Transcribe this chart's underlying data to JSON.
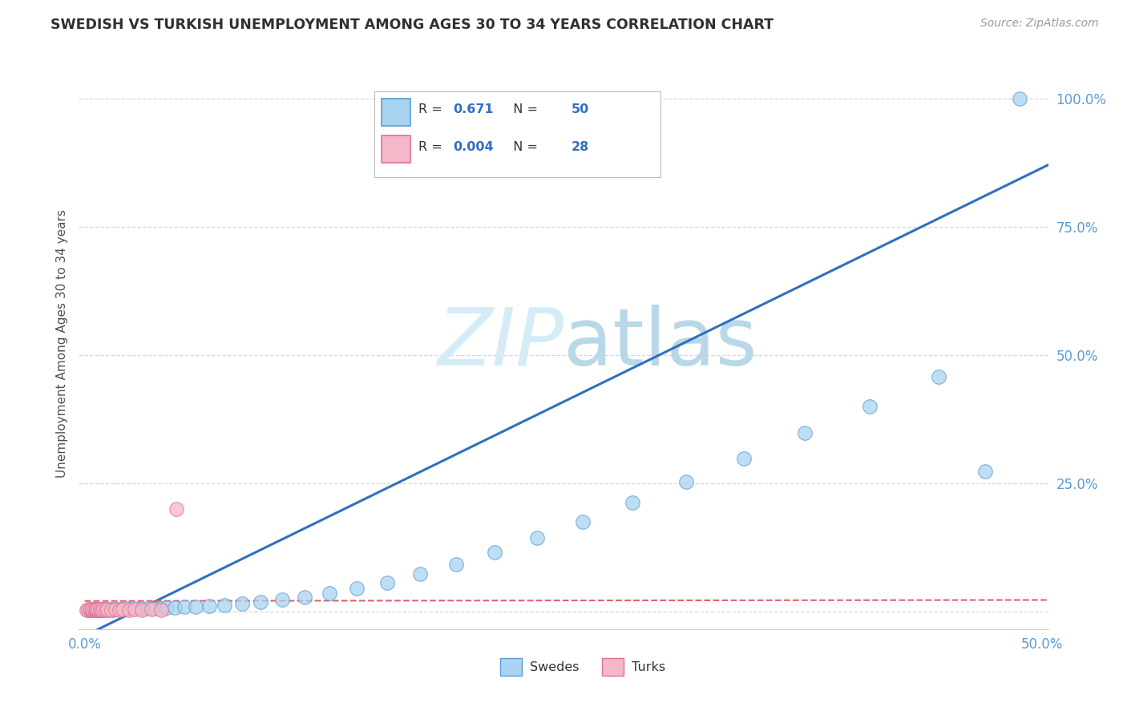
{
  "title": "SWEDISH VS TURKISH UNEMPLOYMENT AMONG AGES 30 TO 34 YEARS CORRELATION CHART",
  "source": "Source: ZipAtlas.com",
  "ylabel_label": "Unemployment Among Ages 30 to 34 years",
  "xlim": [
    -0.003,
    0.503
  ],
  "ylim": [
    -0.035,
    1.08
  ],
  "yticks": [
    0.0,
    0.25,
    0.5,
    0.75,
    1.0
  ],
  "ytick_labels": [
    "",
    "25.0%",
    "50.0%",
    "75.0%",
    "100.0%"
  ],
  "xticks": [
    0.0,
    0.5
  ],
  "xtick_labels": [
    "0.0%",
    "50.0%"
  ],
  "swedes_color": "#a8d4f0",
  "swedes_edge": "#5b9bd5",
  "turks_color": "#f4b8c8",
  "turks_edge": "#e07090",
  "blue_line_color": "#3070c0",
  "pink_line_color": "#e06070",
  "watermark_color": "#d5ecf8",
  "tick_color": "#5b9bd5",
  "grid_color": "#d0d8e0",
  "title_color": "#303030",
  "ylabel_color": "#505050",
  "swedes_x": [
    0.002,
    0.003,
    0.004,
    0.005,
    0.006,
    0.007,
    0.008,
    0.009,
    0.01,
    0.011,
    0.012,
    0.013,
    0.014,
    0.015,
    0.016,
    0.018,
    0.02,
    0.022,
    0.025,
    0.028,
    0.03,
    0.033,
    0.036,
    0.04,
    0.043,
    0.047,
    0.052,
    0.058,
    0.065,
    0.073,
    0.082,
    0.092,
    0.103,
    0.115,
    0.128,
    0.142,
    0.158,
    0.175,
    0.194,
    0.214,
    0.236,
    0.26,
    0.286,
    0.314,
    0.344,
    0.376,
    0.41,
    0.446,
    0.47,
    0.488
  ],
  "swedes_y": [
    0.003,
    0.003,
    0.004,
    0.003,
    0.004,
    0.003,
    0.004,
    0.003,
    0.004,
    0.003,
    0.004,
    0.003,
    0.004,
    0.003,
    0.004,
    0.004,
    0.004,
    0.005,
    0.005,
    0.005,
    0.005,
    0.006,
    0.006,
    0.006,
    0.007,
    0.007,
    0.008,
    0.009,
    0.01,
    0.012,
    0.015,
    0.018,
    0.022,
    0.028,
    0.035,
    0.044,
    0.056,
    0.072,
    0.091,
    0.115,
    0.143,
    0.175,
    0.212,
    0.253,
    0.298,
    0.347,
    0.4,
    0.457,
    0.272,
    1.0
  ],
  "turks_x": [
    0.001,
    0.002,
    0.003,
    0.003,
    0.004,
    0.004,
    0.005,
    0.005,
    0.006,
    0.006,
    0.007,
    0.007,
    0.008,
    0.008,
    0.009,
    0.01,
    0.011,
    0.012,
    0.014,
    0.016,
    0.018,
    0.02,
    0.023,
    0.026,
    0.03,
    0.035,
    0.04,
    0.048
  ],
  "turks_y": [
    0.003,
    0.004,
    0.003,
    0.004,
    0.003,
    0.004,
    0.003,
    0.004,
    0.003,
    0.004,
    0.003,
    0.004,
    0.003,
    0.004,
    0.003,
    0.004,
    0.003,
    0.004,
    0.003,
    0.004,
    0.003,
    0.004,
    0.003,
    0.004,
    0.003,
    0.004,
    0.003,
    0.2
  ],
  "blue_line_x": [
    0.0,
    0.503
  ],
  "blue_line_y": [
    -0.048,
    0.87
  ],
  "pink_line_x": [
    0.0,
    0.503
  ],
  "pink_line_y": [
    0.02,
    0.022
  ]
}
